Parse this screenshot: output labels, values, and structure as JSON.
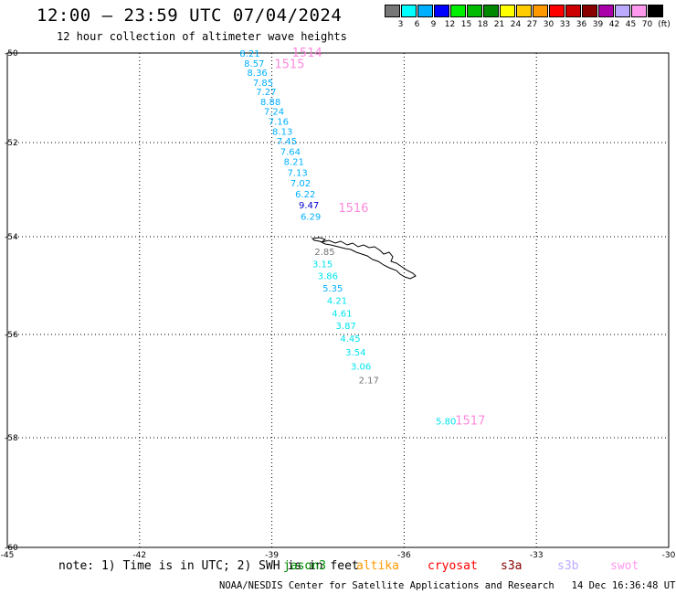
{
  "header": {
    "title": "12:00 — 23:59 UTC 07/04/2024",
    "subtitle": "12 hour collection of altimeter wave heights"
  },
  "legend": {
    "unit": "(ft)",
    "levels": [
      {
        "value": "3",
        "color": "#777777"
      },
      {
        "value": "6",
        "color": "#00ffff"
      },
      {
        "value": "9",
        "color": "#00b0ff"
      },
      {
        "value": "12",
        "color": "#0000ff"
      },
      {
        "value": "15",
        "color": "#00ee00"
      },
      {
        "value": "18",
        "color": "#00bb00"
      },
      {
        "value": "21",
        "color": "#008800"
      },
      {
        "value": "24",
        "color": "#ffff00"
      },
      {
        "value": "27",
        "color": "#ffcc00"
      },
      {
        "value": "30",
        "color": "#ff9900"
      },
      {
        "value": "33",
        "color": "#ff0000"
      },
      {
        "value": "36",
        "color": "#cc0000"
      },
      {
        "value": "39",
        "color": "#880000"
      },
      {
        "value": "42",
        "color": "#aa00aa"
      },
      {
        "value": "45",
        "color": "#bbaaff"
      },
      {
        "value": "70",
        "color": "#ff99ee"
      },
      {
        "value": "",
        "color": "#000000"
      }
    ]
  },
  "axes": {
    "lat_labels": [
      "-50",
      "-52",
      "-54",
      "-56",
      "-58",
      "-60"
    ],
    "lon_labels": [
      "-45",
      "-42",
      "-39",
      "-36",
      "-33",
      "-30"
    ]
  },
  "observations": [
    {
      "lon": -39.5,
      "lat": -50.0,
      "text": "8.21",
      "color": "#00b0ff"
    },
    {
      "lon": -39.4,
      "lat": -50.22,
      "text": "8.57",
      "color": "#00b0ff"
    },
    {
      "lon": -39.33,
      "lat": -50.43,
      "text": "8.36",
      "color": "#00b0ff"
    },
    {
      "lon": -39.2,
      "lat": -50.65,
      "text": "7.85",
      "color": "#00b0ff"
    },
    {
      "lon": -39.13,
      "lat": -50.86,
      "text": "7.27",
      "color": "#00b0ff"
    },
    {
      "lon": -39.03,
      "lat": -51.08,
      "text": "8.88",
      "color": "#00b0ff"
    },
    {
      "lon": -38.95,
      "lat": -51.3,
      "text": "7.24",
      "color": "#00b0ff"
    },
    {
      "lon": -38.85,
      "lat": -51.52,
      "text": "7.16",
      "color": "#00b0ff"
    },
    {
      "lon": -38.76,
      "lat": -51.74,
      "text": "8.13",
      "color": "#00b0ff"
    },
    {
      "lon": -38.66,
      "lat": -51.96,
      "text": "7.45",
      "color": "#00b0ff"
    },
    {
      "lon": -38.58,
      "lat": -52.18,
      "text": "7.64",
      "color": "#00b0ff"
    },
    {
      "lon": -38.5,
      "lat": -52.4,
      "text": "8.21",
      "color": "#00b0ff"
    },
    {
      "lon": -38.42,
      "lat": -52.63,
      "text": "7.13",
      "color": "#00b0ff"
    },
    {
      "lon": -38.35,
      "lat": -52.85,
      "text": "7.02",
      "color": "#00b0ff"
    },
    {
      "lon": -38.24,
      "lat": -53.09,
      "text": "6.22",
      "color": "#00b0ff"
    },
    {
      "lon": -38.16,
      "lat": -53.32,
      "text": "9.47",
      "color": "#0000cc"
    },
    {
      "lon": -38.12,
      "lat": -53.56,
      "text": "6.29",
      "color": "#00b0ff"
    },
    {
      "lon": -37.8,
      "lat": -54.3,
      "text": "2.85",
      "color": "#777777"
    },
    {
      "lon": -37.85,
      "lat": -54.55,
      "text": "3.15",
      "color": "#00e5ee"
    },
    {
      "lon": -37.73,
      "lat": -54.79,
      "text": "3.86",
      "color": "#00e5ee"
    },
    {
      "lon": -37.62,
      "lat": -55.05,
      "text": "5.35",
      "color": "#00b0ff"
    },
    {
      "lon": -37.52,
      "lat": -55.3,
      "text": "4.21",
      "color": "#00e5ee"
    },
    {
      "lon": -37.41,
      "lat": -55.56,
      "text": "4.61",
      "color": "#00e5ee"
    },
    {
      "lon": -37.32,
      "lat": -55.81,
      "text": "3.87",
      "color": "#00e5ee"
    },
    {
      "lon": -37.22,
      "lat": -56.07,
      "text": "4.45",
      "color": "#00e5ee"
    },
    {
      "lon": -37.1,
      "lat": -56.34,
      "text": "3.54",
      "color": "#00e5ee"
    },
    {
      "lon": -36.98,
      "lat": -56.61,
      "text": "3.06",
      "color": "#00e5ee"
    },
    {
      "lon": -36.8,
      "lat": -56.88,
      "text": "2.17",
      "color": "#777777"
    },
    {
      "lon": -35.05,
      "lat": -57.67,
      "text": "5.80",
      "color": "#00e5ee"
    }
  ],
  "passes": [
    {
      "lon": -38.2,
      "lat": -50.0,
      "text": "1514",
      "color": "#ff88dd"
    },
    {
      "lon": -38.6,
      "lat": -50.25,
      "text": "1515",
      "color": "#ff88dd"
    },
    {
      "lon": -37.15,
      "lat": -53.4,
      "text": "1516",
      "color": "#ff88dd"
    },
    {
      "lon": -34.5,
      "lat": -57.67,
      "text": "1517",
      "color": "#ff88dd"
    }
  ],
  "footer": {
    "note": "note: 1) Time is in UTC; 2) SWH is in feet",
    "satellites": [
      {
        "name": "jason3",
        "color": "#008800"
      },
      {
        "name": "altika",
        "color": "#ff9900"
      },
      {
        "name": "cryosat",
        "color": "#ff0000"
      },
      {
        "name": "s3a",
        "color": "#880000"
      },
      {
        "name": "s3b",
        "color": "#bbaaff"
      },
      {
        "name": "swot",
        "color": "#ff99ee"
      }
    ],
    "credit": "NOAA/NESDIS Center for Satellite Applications and Research",
    "timestamp": "14 Dec 16:36:48 UTC 2024"
  }
}
